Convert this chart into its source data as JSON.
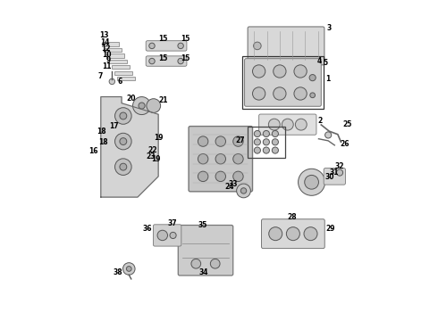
{
  "background_color": "#ffffff",
  "line_color": "#555555",
  "text_color": "#000000",
  "fig_width": 4.9,
  "fig_height": 3.6,
  "dpi": 100,
  "label_fontsize": 5.5
}
